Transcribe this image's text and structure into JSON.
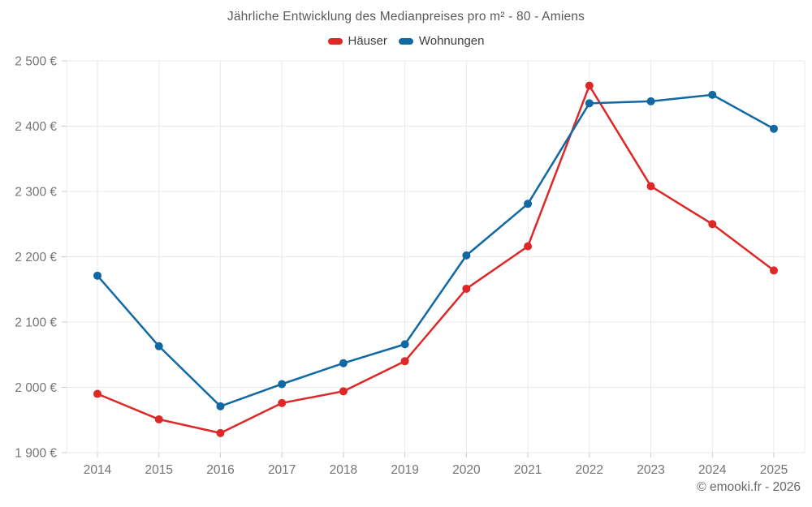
{
  "chart_data": {
    "type": "line",
    "title": "Jährliche Entwicklung des Medianpreises pro m² - 80 - Amiens",
    "categories": [
      "2014",
      "2015",
      "2016",
      "2017",
      "2018",
      "2019",
      "2020",
      "2021",
      "2022",
      "2023",
      "2024",
      "2025"
    ],
    "series": [
      {
        "name": "Häuser",
        "color": "#de2727",
        "values": [
          1990,
          1951,
          1930,
          1976,
          1994,
          2040,
          2151,
          2216,
          2462,
          2308,
          2250,
          2179
        ]
      },
      {
        "name": "Wohnungen",
        "color": "#1169a4",
        "values": [
          2171,
          2063,
          1971,
          2005,
          2037,
          2066,
          2202,
          2281,
          2435,
          2438,
          2448,
          2396
        ]
      }
    ],
    "xlabel": "",
    "ylabel": "",
    "ylim": [
      1900,
      2500
    ],
    "y_tick_step": 100,
    "y_tick_labels": [
      "1 900 €",
      "2 000 €",
      "2 100 €",
      "2 200 €",
      "2 300 €",
      "2 400 €",
      "2 500 €"
    ],
    "grid": true,
    "legend_position": "top-center",
    "grid_color": "#e9e9e9",
    "tick_text_color": "#757575",
    "background_color": "#ffffff"
  },
  "footer": {
    "text": "© emooki.fr - 2026"
  }
}
